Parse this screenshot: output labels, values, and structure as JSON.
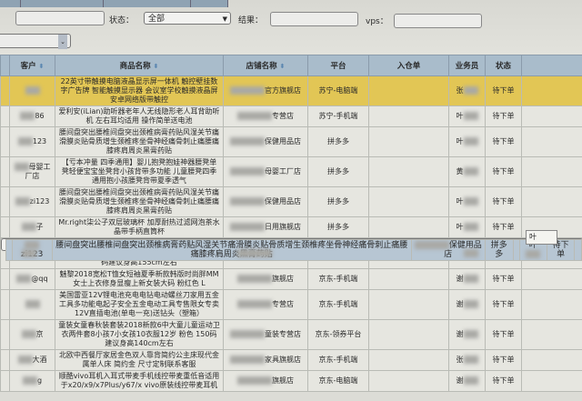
{
  "filters": {
    "status_label": "状态：",
    "status_value": "全部",
    "result_label": "结果：",
    "vps_label": "vps：",
    "result_value": "",
    "vps_value": ""
  },
  "columns": [
    "客户",
    "商品名称",
    "店铺名称",
    "平台",
    "入仓单",
    "业务员",
    "状态"
  ],
  "rows": [
    {
      "customer": "",
      "product": "22英寸带触摸电脑液晶显示屏一体机 触控壁挂数字广告牌 智能触摸显示器 会议室学校触摸液晶屏 安卓网络版带触控",
      "shop": "官方旗舰店",
      "platform": "苏宁-电脑端",
      "staff": "张",
      "status": "待下单",
      "style": "hl"
    },
    {
      "customer": "86",
      "product": "爱利安(iLian)助听器老年人无线隐形老人耳背助听机 左右耳均适用 操作简单送电池",
      "shop": "专营店",
      "platform": "苏宁-手机端",
      "staff": "叶",
      "status": "待下单"
    },
    {
      "customer": "123",
      "product": "腰间盘突出腰椎间盘突出颈椎病膏药贴风湿关节痛滑膜炎贴骨质增生颈椎疼坐骨神经痛骨刺止痛腰痛膝疼肩周炎黑膏药贴",
      "shop": "保健用品店",
      "platform": "拼多多",
      "staff": "叶",
      "status": "待下单"
    },
    {
      "customer": "母婴工厂店",
      "product": "【亏本冲量 四季通用】婴儿抱凳抱娃神器腰凳单凳轻便宝宝坐凳背小孩背带多功能 儿童腰凳四季通用抱小孩腰凳背带夏季透气",
      "shop": "母婴工厂店",
      "platform": "拼多多",
      "staff": "黄",
      "status": "待下单"
    },
    {
      "customer": "zi123",
      "product": "腰间盘突出腰椎间盘突出颈椎病膏药贴风湿关节痛滑膜炎贴骨质增生颈椎疼坐骨神经痛骨刺止痛腰痛膝疼肩周炎黑膏药贴",
      "shop": "保健用品店",
      "platform": "拼多多",
      "staff": "叶",
      "status": "待下单"
    },
    {
      "customer": "子",
      "product": "Mr.right柒公子双层玻璃杯 加厚耐热过滤网泡茶水晶带手柄直筒杯",
      "shop": "日用旗舰店",
      "platform": "拼多多",
      "staff": "叶",
      "status": "待下单"
    },
    {
      "customer": "zi123",
      "product": "腰间盘突出腰椎间盘突出颈椎病膏药贴风湿关节痛滑膜炎贴骨质增生颈椎疼坐骨神经痛骨刺止痛腰痛膝疼肩周炎黑膏药贴",
      "shop": "保健用品店",
      "platform": "拼多多",
      "staff": "叶",
      "status": "待下单",
      "style": "sel"
    },
    {
      "customer": "饭",
      "product": "【三件套】儿童装女童春装套装2018新款 韩版时尚中大童女孩运动春装儿童三件套潮 粉红色 160码建议身高155cm左右",
      "shop": "旗舰店",
      "platform": "京东-领券平台",
      "staff": "谢",
      "status": "待下单"
    },
    {
      "customer": "@qq",
      "product": "魅黎2018宽松T恤女短袖夏季新款韩版时尚胖MM女士上衣修身显瘦上新女装大码 粉红色 L",
      "shop": "旗舰店",
      "platform": "京东-手机端",
      "staff": "谢",
      "status": "待下单"
    },
    {
      "customer": "",
      "product": "美国雷亚12V锂电池充电电钻电动螺丝刀家用五金工具多功能电起子安全五金电动工具专售限女专卖 12V直插电池(单电一充)送钻头（塑箱）",
      "shop": "专营店",
      "platform": "京东-手机端",
      "staff": "谢",
      "status": "待下单"
    },
    {
      "customer": "京",
      "product": "童装女童春秋装套装2018新款6中大童儿童运动卫衣两件套8小孩7小女孩10衣服12岁 粉色 150码建议身高140cm左右",
      "shop": "童装专营店",
      "platform": "京东-领券平台",
      "staff": "谢",
      "status": "待下单"
    },
    {
      "customer": "大酒",
      "product": "北欧中西餐厅家居金色双人靠背简约公主床现代金属单人床 简约金 尺寸定制联系客服",
      "shop": "家具旗舰店",
      "platform": "京东-手机端",
      "staff": "张",
      "status": "待下单"
    },
    {
      "customer": "g",
      "product": "顺酷vivo耳机入耳式带麦手机线控带麦重低音适用于x20/x9/x7Plus/y67/x vivo原装线控带麦耳机",
      "shop": "旗舰店",
      "platform": "京东-电脑端",
      "staff": "谢",
      "status": "待下单"
    }
  ],
  "tooltip": "叶"
}
